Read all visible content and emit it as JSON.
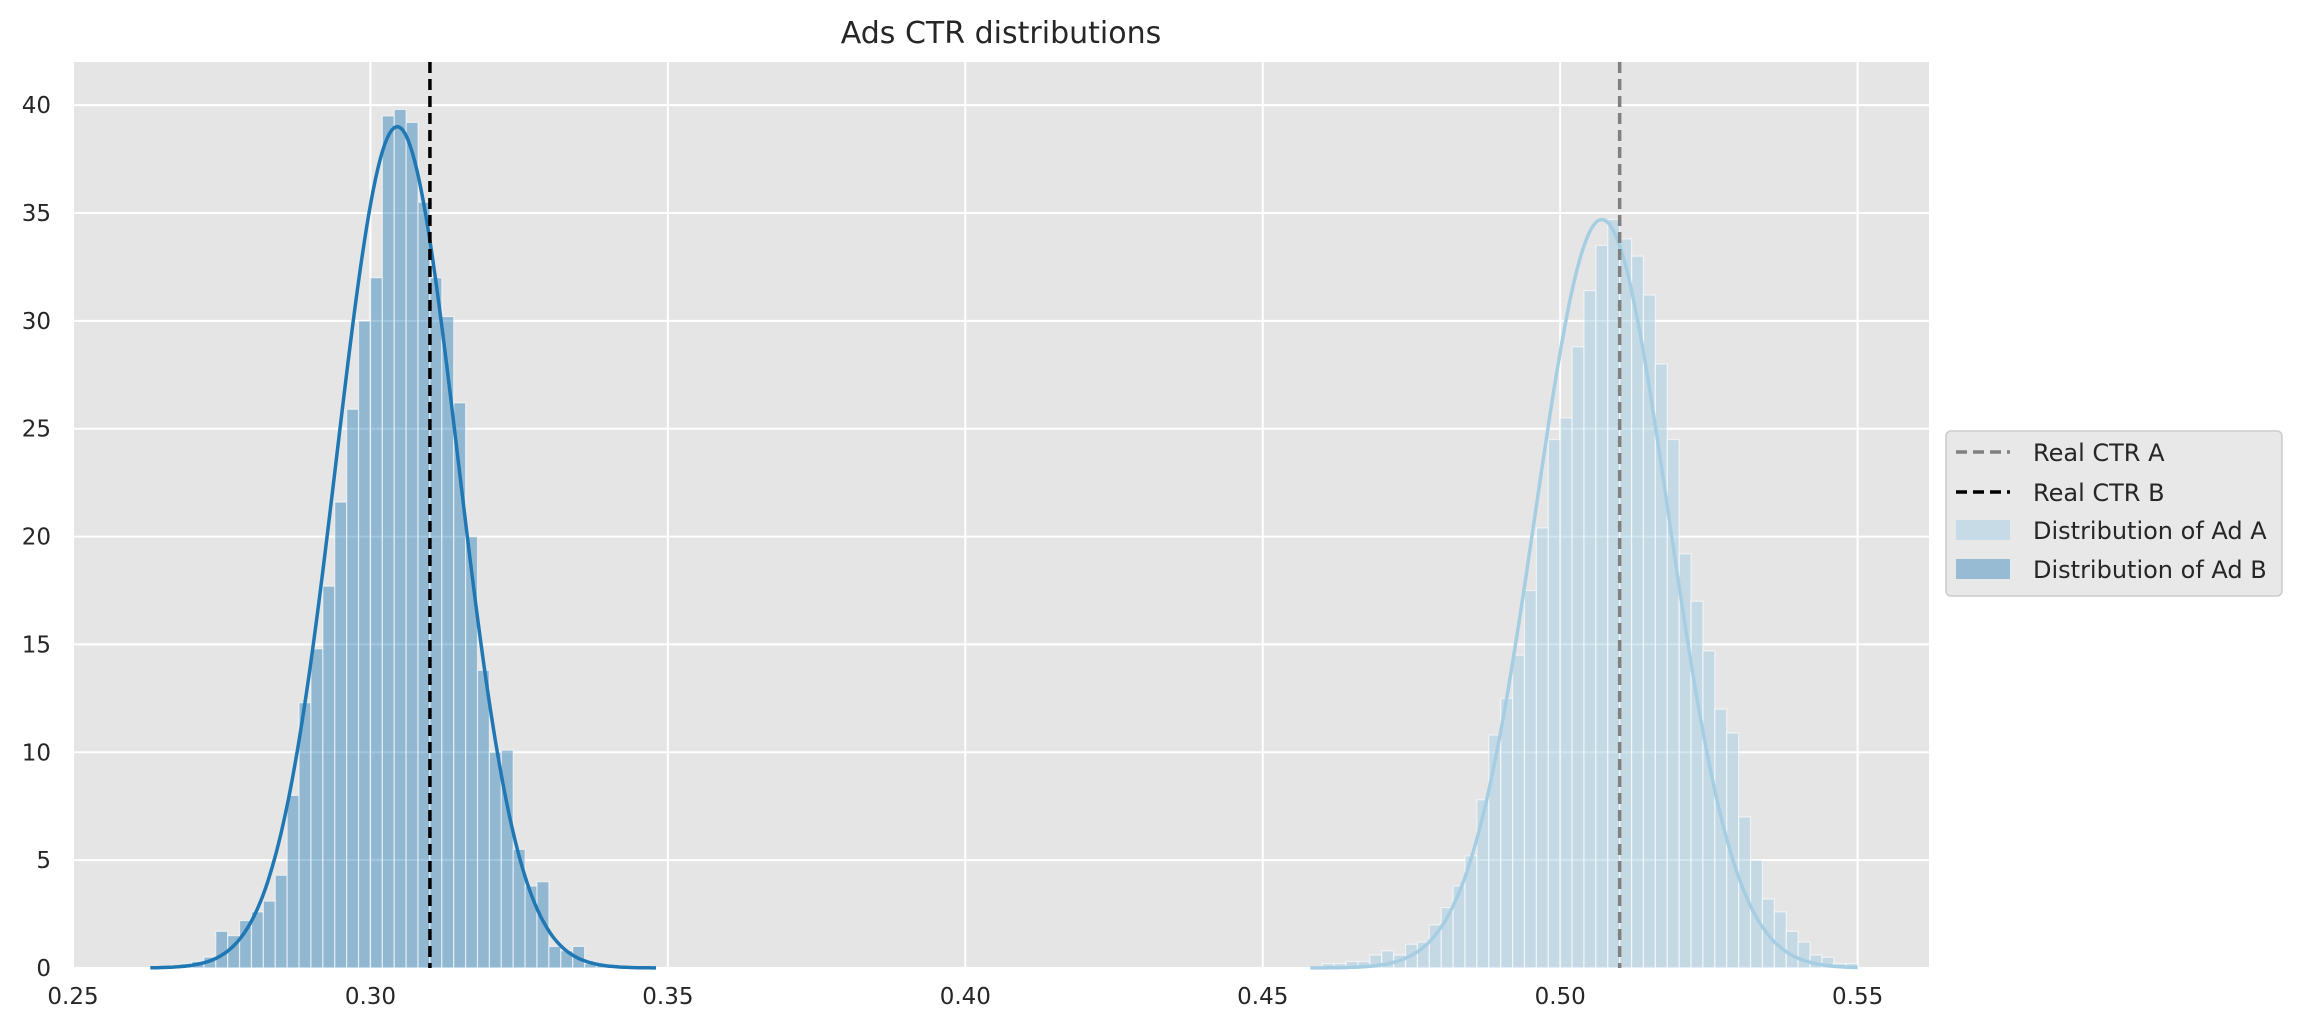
{
  "chart_data": {
    "type": "histogram",
    "title": "Ads CTR distributions",
    "xlabel": "",
    "ylabel": "",
    "xlim": [
      0.25,
      0.562
    ],
    "ylim": [
      0,
      42
    ],
    "x_ticks": [
      0.25,
      0.3,
      0.35,
      0.4,
      0.45,
      0.5,
      0.55
    ],
    "x_tick_labels": [
      "0.25",
      "0.30",
      "0.35",
      "0.40",
      "0.45",
      "0.50",
      "0.55"
    ],
    "y_ticks": [
      0,
      5,
      10,
      15,
      20,
      25,
      30,
      35,
      40
    ],
    "y_tick_labels": [
      "0",
      "5",
      "10",
      "15",
      "20",
      "25",
      "30",
      "35",
      "40"
    ],
    "grid": true,
    "legend_position": "right-center",
    "series": [
      {
        "name": "Distribution of Ad A",
        "color": "#a6cee3",
        "kde_color": "#a6cee3",
        "bin_width": 0.002,
        "bins": [
          [
            0.46,
            0.2
          ],
          [
            0.462,
            0.2
          ],
          [
            0.464,
            0.3
          ],
          [
            0.466,
            0.3
          ],
          [
            0.468,
            0.6
          ],
          [
            0.47,
            0.8
          ],
          [
            0.472,
            0.6
          ],
          [
            0.474,
            1.1
          ],
          [
            0.476,
            1.2
          ],
          [
            0.478,
            2.0
          ],
          [
            0.48,
            2.8
          ],
          [
            0.482,
            3.8
          ],
          [
            0.484,
            5.2
          ],
          [
            0.486,
            7.8
          ],
          [
            0.488,
            10.8
          ],
          [
            0.49,
            12.5
          ],
          [
            0.492,
            14.5
          ],
          [
            0.494,
            17.5
          ],
          [
            0.496,
            20.4
          ],
          [
            0.498,
            24.5
          ],
          [
            0.5,
            25.5
          ],
          [
            0.502,
            28.8
          ],
          [
            0.504,
            31.4
          ],
          [
            0.506,
            33.5
          ],
          [
            0.508,
            34.7
          ],
          [
            0.51,
            33.8
          ],
          [
            0.512,
            33.0
          ],
          [
            0.514,
            31.2
          ],
          [
            0.516,
            28.0
          ],
          [
            0.518,
            24.5
          ],
          [
            0.52,
            19.2
          ],
          [
            0.522,
            17.0
          ],
          [
            0.524,
            14.7
          ],
          [
            0.526,
            12.0
          ],
          [
            0.528,
            10.9
          ],
          [
            0.53,
            7.0
          ],
          [
            0.532,
            5.0
          ],
          [
            0.534,
            3.2
          ],
          [
            0.536,
            2.6
          ],
          [
            0.538,
            1.7
          ],
          [
            0.54,
            1.2
          ],
          [
            0.542,
            0.6
          ],
          [
            0.544,
            0.5
          ],
          [
            0.546,
            0.2
          ],
          [
            0.548,
            0.2
          ]
        ],
        "kde": {
          "mean": 0.507,
          "sd": 0.0112,
          "peak": 34.7,
          "range": [
            0.458,
            0.55
          ]
        }
      },
      {
        "name": "Distribution of Ad B",
        "color": "#1f78b4",
        "kde_color": "#1f78b4",
        "bin_width": 0.002,
        "bins": [
          [
            0.266,
            0.1
          ],
          [
            0.268,
            0.2
          ],
          [
            0.27,
            0.3
          ],
          [
            0.272,
            0.5
          ],
          [
            0.274,
            1.7
          ],
          [
            0.276,
            1.5
          ],
          [
            0.278,
            2.2
          ],
          [
            0.28,
            2.6
          ],
          [
            0.282,
            3.1
          ],
          [
            0.284,
            4.3
          ],
          [
            0.286,
            8.0
          ],
          [
            0.288,
            12.3
          ],
          [
            0.29,
            14.8
          ],
          [
            0.292,
            17.7
          ],
          [
            0.294,
            21.6
          ],
          [
            0.296,
            25.9
          ],
          [
            0.298,
            30.0
          ],
          [
            0.3,
            32.0
          ],
          [
            0.302,
            39.5
          ],
          [
            0.304,
            39.8
          ],
          [
            0.306,
            39.2
          ],
          [
            0.308,
            35.5
          ],
          [
            0.31,
            32.0
          ],
          [
            0.312,
            30.2
          ],
          [
            0.314,
            26.2
          ],
          [
            0.316,
            20.0
          ],
          [
            0.318,
            13.8
          ],
          [
            0.32,
            10.0
          ],
          [
            0.322,
            10.1
          ],
          [
            0.324,
            5.5
          ],
          [
            0.326,
            3.8
          ],
          [
            0.328,
            4.0
          ],
          [
            0.33,
            1.0
          ],
          [
            0.332,
            0.8
          ],
          [
            0.334,
            1.0
          ],
          [
            0.336,
            0.2
          ],
          [
            0.338,
            0.1
          ],
          [
            0.34,
            0.1
          ],
          [
            0.342,
            0.1
          ]
        ],
        "kde": {
          "mean": 0.3045,
          "sd": 0.0102,
          "peak": 39.0,
          "range": [
            0.263,
            0.348
          ]
        }
      }
    ],
    "reference_lines": [
      {
        "name": "Real CTR A",
        "x": 0.51,
        "color": "#808080",
        "style": "dashed"
      },
      {
        "name": "Real CTR B",
        "x": 0.31,
        "color": "#000000",
        "style": "dashed"
      }
    ],
    "legend": [
      "Real CTR A",
      "Real CTR B",
      "Distribution of Ad A",
      "Distribution of Ad B"
    ],
    "colors": {
      "plot_background": "#e5e5e5",
      "grid": "#ffffff"
    }
  }
}
